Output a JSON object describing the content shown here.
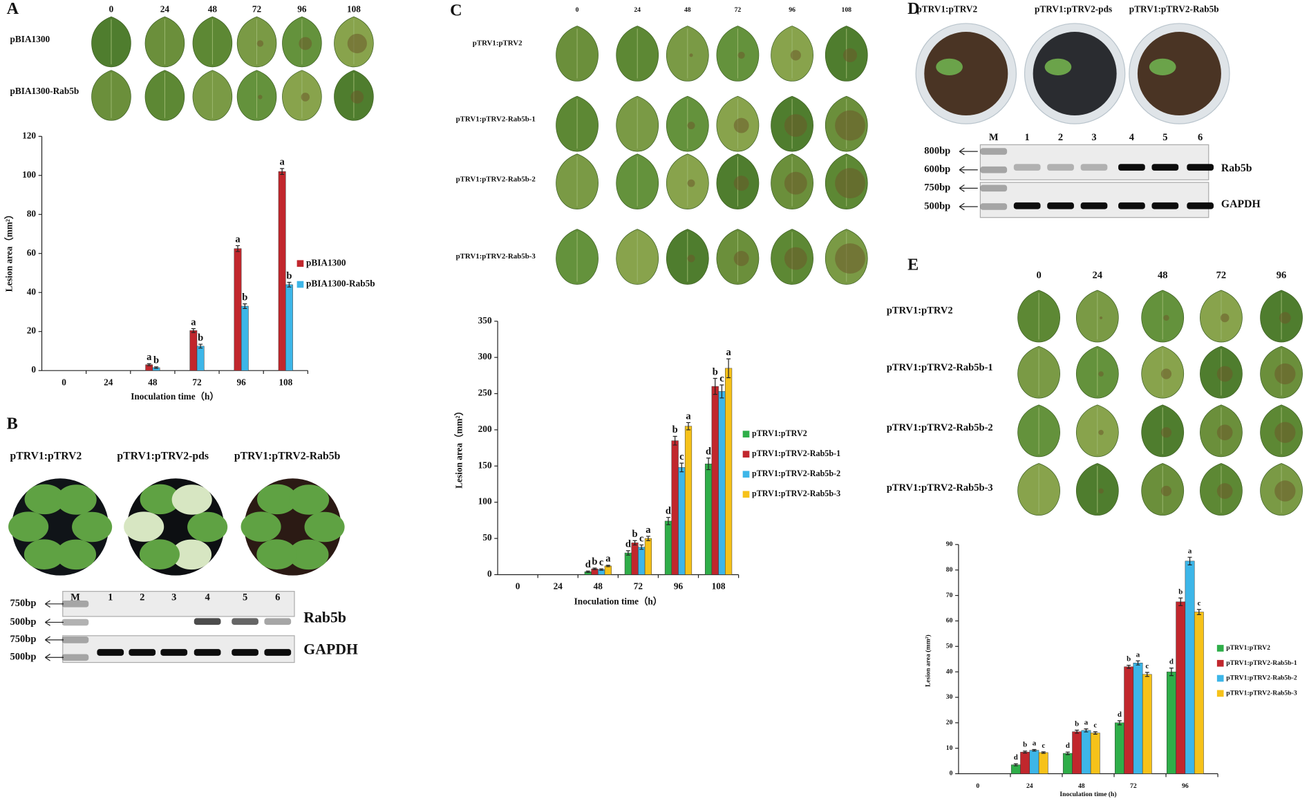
{
  "panels": {
    "A": {
      "letter": "A",
      "times": [
        "0",
        "24",
        "48",
        "72",
        "96",
        "108"
      ],
      "rows": [
        "pBIA1300",
        "pBIA1300-Rab5b"
      ]
    },
    "B": {
      "letter": "B",
      "plants": [
        "pTRV1:pTRV2",
        "pTRV1:pTRV2-pds",
        "pTRV1:pTRV2-Rab5b"
      ],
      "lanes": [
        "M",
        "1",
        "2",
        "3",
        "4",
        "5",
        "6"
      ],
      "sizes": [
        "750bp",
        "500bp",
        "750bp",
        "500bp"
      ],
      "genes": [
        "Rab5b",
        "GAPDH"
      ]
    },
    "C": {
      "letter": "C",
      "times": [
        "0",
        "24",
        "48",
        "72",
        "96",
        "108"
      ],
      "rows": [
        "pTRV1:pTRV2",
        "pTRV1:pTRV2-Rab5b-1",
        "pTRV1:pTRV2-Rab5b-2",
        "pTRV1:pTRV2-Rab5b-3"
      ]
    },
    "D": {
      "letter": "D",
      "plants": [
        "pTRV1:pTRV2",
        "pTRV1:pTRV2-pds",
        "pTRV1:pTRV2-Rab5b"
      ],
      "lanes": [
        "M",
        "1",
        "2",
        "3",
        "4",
        "5",
        "6"
      ],
      "sizes": [
        "800bp",
        "600bp",
        "750bp",
        "500bp"
      ],
      "genes": [
        "Rab5b",
        "GAPDH"
      ]
    },
    "E": {
      "letter": "E",
      "times": [
        "0",
        "24",
        "48",
        "72",
        "96"
      ],
      "rows": [
        "pTRV1:pTRV2",
        "pTRV1:pTRV2-Rab5b-1",
        "pTRV1:pTRV2-Rab5b-2",
        "pTRV1:pTRV2-Rab5b-3"
      ]
    }
  },
  "chart_data": [
    {
      "type": "bar",
      "x_label": "Inoculation time（h）",
      "y_label": "Lesion area（mm²）",
      "categories": [
        "0",
        "24",
        "48",
        "72",
        "96",
        "108"
      ],
      "ylim": [
        0,
        120
      ],
      "yticks": [
        0,
        20,
        40,
        60,
        80,
        100,
        120
      ],
      "legend": "right",
      "series": [
        {
          "name": "pBIA1300",
          "color": "#c1272d",
          "values": [
            0,
            0,
            3,
            20.5,
            62.5,
            102
          ],
          "errors": [
            0,
            0,
            0.5,
            1,
            1.5,
            1.5
          ],
          "labels": [
            null,
            null,
            "a",
            "a",
            "a",
            "a"
          ]
        },
        {
          "name": "pBIA1300-Rab5b",
          "color": "#3db6e8",
          "values": [
            0,
            0,
            1.5,
            12.5,
            33,
            44
          ],
          "errors": [
            0,
            0,
            0.4,
            1,
            1.2,
            1.2
          ],
          "labels": [
            null,
            null,
            "b",
            "b",
            "b",
            "b"
          ]
        }
      ]
    },
    {
      "type": "bar",
      "x_label": "Inoculation time（h）",
      "y_label": "Lesion area（mm²）",
      "categories": [
        "0",
        "24",
        "48",
        "72",
        "96",
        "108"
      ],
      "ylim": [
        0,
        350
      ],
      "yticks": [
        0,
        50,
        100,
        150,
        200,
        250,
        300,
        350
      ],
      "legend": "right",
      "series": [
        {
          "name": "pTRV1:pTRV2",
          "color": "#2fae49",
          "values": [
            0,
            0,
            4,
            30,
            74,
            153
          ],
          "errors": [
            0,
            0,
            1,
            3,
            5,
            8
          ],
          "labels": [
            null,
            null,
            "d",
            "d",
            "d",
            "d"
          ]
        },
        {
          "name": "pTRV1:pTRV2-Rab5b-1",
          "color": "#c1272d",
          "values": [
            0,
            0,
            8,
            44,
            185,
            260
          ],
          "errors": [
            0,
            0,
            1,
            3,
            6,
            11
          ],
          "labels": [
            null,
            null,
            "b",
            "b",
            "b",
            "b"
          ]
        },
        {
          "name": "pTRV1:pTRV2-Rab5b-2",
          "color": "#3db6e8",
          "values": [
            0,
            0,
            7,
            38,
            148,
            253
          ],
          "errors": [
            0,
            0,
            1,
            3,
            6,
            9
          ],
          "labels": [
            null,
            null,
            "c",
            "c",
            "c",
            "c"
          ]
        },
        {
          "name": "pTRV1:pTRV2-Rab5b-3",
          "color": "#f6c21a",
          "values": [
            0,
            0,
            12,
            50,
            205,
            285
          ],
          "errors": [
            0,
            0,
            1,
            3,
            5,
            13
          ],
          "labels": [
            null,
            null,
            "a",
            "a",
            "a",
            "a"
          ]
        }
      ]
    },
    {
      "type": "bar",
      "x_label": "Inoculation  time (h)",
      "y_label": "Lesion area (mm²)",
      "categories": [
        "0",
        "24",
        "48",
        "72",
        "96"
      ],
      "ylim": [
        0,
        90
      ],
      "yticks": [
        0,
        10,
        20,
        30,
        40,
        50,
        60,
        70,
        80,
        90
      ],
      "legend": "right",
      "series": [
        {
          "name": "pTRV1:pTRV2",
          "color": "#2fae49",
          "values": [
            0,
            3.5,
            8,
            20,
            40
          ],
          "errors": [
            0,
            0.4,
            0.5,
            0.8,
            1.5
          ],
          "labels": [
            null,
            "d",
            "d",
            "d",
            "d"
          ]
        },
        {
          "name": "pTRV1:pTRV2-Rab5b-1",
          "color": "#c1272d",
          "values": [
            0,
            8.5,
            16.5,
            42,
            67.5
          ],
          "errors": [
            0,
            0.4,
            0.6,
            0.6,
            1.5
          ],
          "labels": [
            null,
            "b",
            "b",
            "b",
            "b"
          ]
        },
        {
          "name": "pTRV1:pTRV2-Rab5b-2",
          "color": "#3db6e8",
          "values": [
            0,
            9.2,
            17,
            43.5,
            83.5
          ],
          "errors": [
            0,
            0.3,
            0.6,
            0.8,
            1.5
          ],
          "labels": [
            null,
            "a",
            "a",
            "a",
            "a"
          ]
        },
        {
          "name": "pTRV1:pTRV2-Rab5b-3",
          "color": "#f6c21a",
          "values": [
            0,
            8.3,
            16,
            39,
            63.5
          ],
          "errors": [
            0,
            0.3,
            0.5,
            0.8,
            1
          ],
          "labels": [
            null,
            "c",
            "c",
            "c",
            "c"
          ]
        }
      ]
    }
  ]
}
